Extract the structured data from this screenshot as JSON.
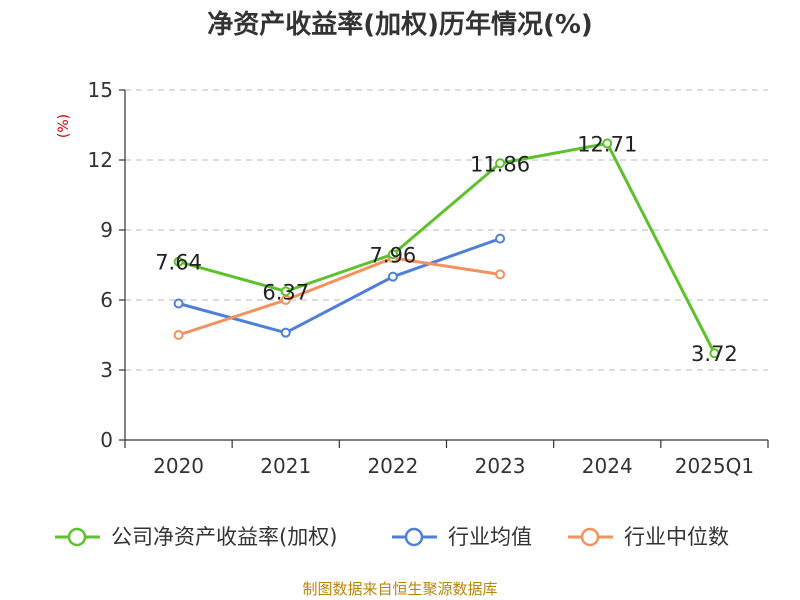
{
  "chart_data": {
    "type": "line",
    "title": "净资产收益率(加权)历年情况(%)",
    "ylabel": "(%)",
    "xlabel": "",
    "categories": [
      "2020",
      "2021",
      "2022",
      "2023",
      "2024",
      "2025Q1"
    ],
    "ylim": [
      0,
      15
    ],
    "yticks": [
      0,
      3,
      6,
      9,
      12,
      15
    ],
    "grid": true,
    "legend_position": "bottom",
    "series": [
      {
        "name": "公司净资产收益率(加权)",
        "color": "#5cc12b",
        "values": [
          7.64,
          6.37,
          7.96,
          11.86,
          12.71,
          3.72
        ],
        "labels": [
          "7.64",
          "6.37",
          "7.96",
          "11.86",
          "12.71",
          "3.72"
        ]
      },
      {
        "name": "行业均值",
        "color": "#4f7fdb",
        "values": [
          5.85,
          4.6,
          7.0,
          8.63,
          null,
          null
        ]
      },
      {
        "name": "行业中位数",
        "color": "#f4915e",
        "values": [
          4.5,
          6.0,
          7.8,
          7.1,
          null,
          null
        ]
      }
    ],
    "source": "制图数据来自恒生聚源数据库"
  }
}
